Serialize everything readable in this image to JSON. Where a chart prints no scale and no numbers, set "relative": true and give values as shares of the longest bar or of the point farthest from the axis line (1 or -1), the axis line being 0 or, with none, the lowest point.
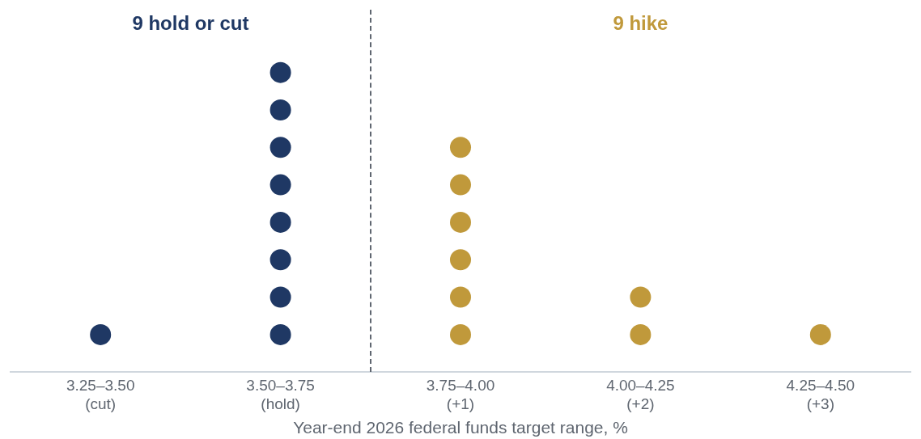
{
  "chart_data": {
    "type": "scatter",
    "relative": true,
    "xlabel": "Year-end 2026 federal funds target range, %",
    "categories": [
      "3.25–3.50\n(cut)",
      "3.50–3.75\n(hold)",
      "3.75–4.00\n(+1)",
      "4.00–4.25\n(+2)",
      "4.25–4.50\n(+3)"
    ],
    "marker": "circle",
    "grid": false,
    "series": [
      {
        "name": "9 hold or cut",
        "color": "#1f3864",
        "x": [
          "3.25–3.50\n(cut)",
          "3.50–3.75\n(hold)",
          "3.50–3.75\n(hold)",
          "3.50–3.75\n(hold)",
          "3.50–3.75\n(hold)",
          "3.50–3.75\n(hold)",
          "3.50–3.75\n(hold)",
          "3.50–3.75\n(hold)",
          "3.50–3.75\n(hold)"
        ],
        "values": [
          0.125,
          0.125,
          0.25,
          0.375,
          0.5,
          0.625,
          0.75,
          0.875,
          1
        ]
      },
      {
        "name": "9 hike",
        "color": "#c0993b",
        "x": [
          "3.75–4.00\n(+1)",
          "3.75–4.00\n(+1)",
          "3.75–4.00\n(+1)",
          "3.75–4.00\n(+1)",
          "3.75–4.00\n(+1)",
          "3.75–4.00\n(+1)",
          "4.00–4.25\n(+2)",
          "4.00–4.25\n(+2)",
          "4.25–4.50\n(+3)"
        ],
        "values": [
          0.125,
          0.25,
          0.375,
          0.5,
          0.625,
          0.75,
          0.125,
          0.25,
          0.125
        ]
      }
    ]
  }
}
